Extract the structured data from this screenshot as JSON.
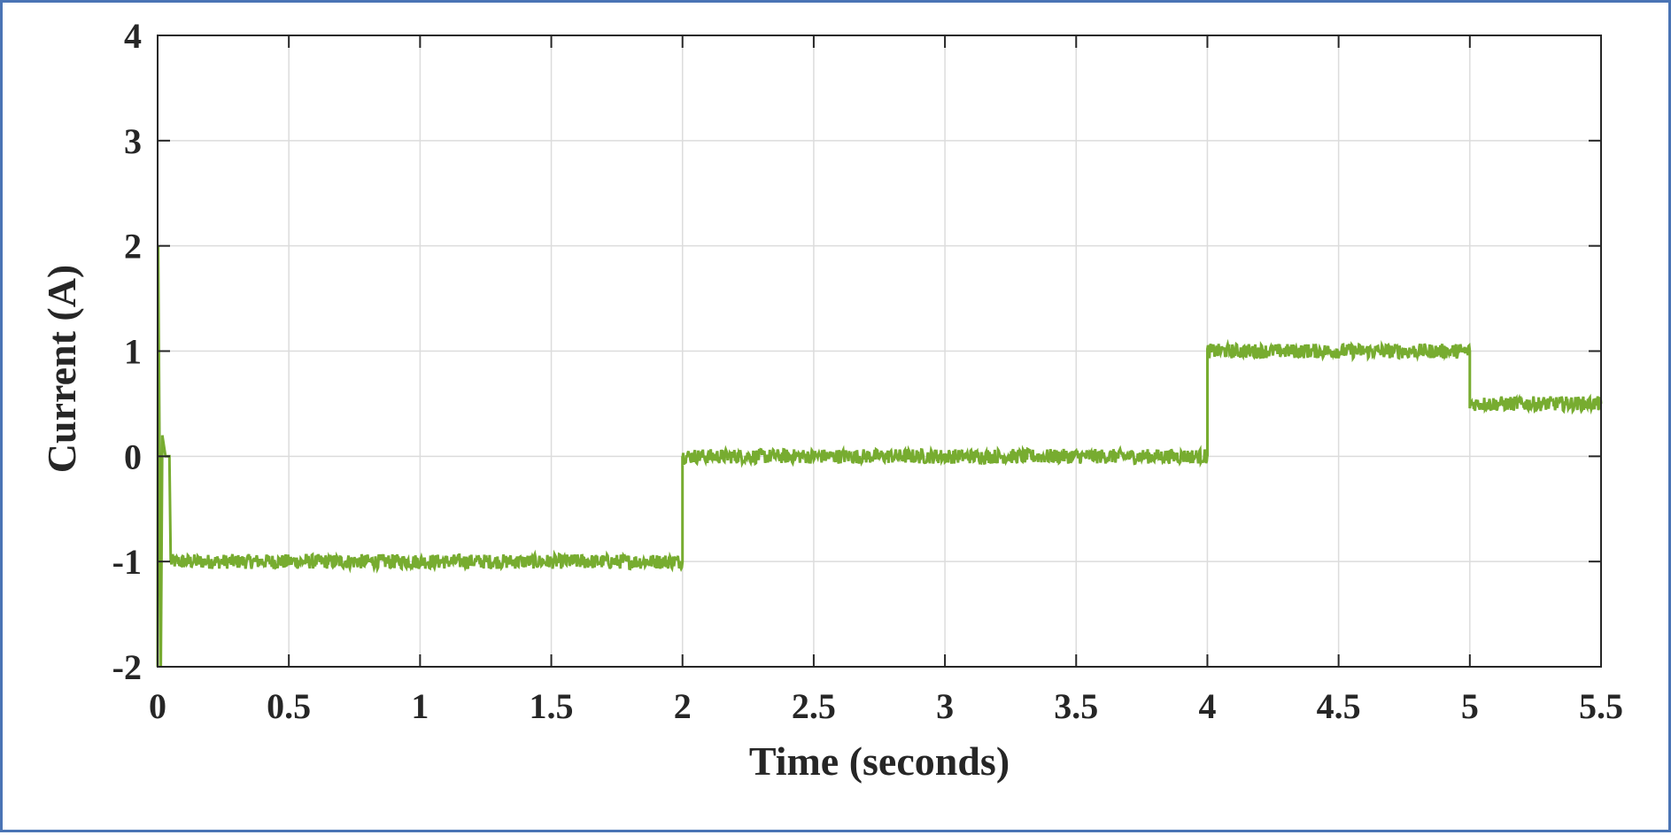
{
  "chart_data": {
    "type": "line",
    "title": "",
    "xlabel": "Time (seconds)",
    "ylabel": "Current (A)",
    "xlim": [
      0,
      5.5
    ],
    "ylim": [
      -2,
      4
    ],
    "xticks": [
      "0",
      "0.5",
      "1",
      "1.5",
      "2",
      "2.5",
      "3",
      "3.5",
      "4",
      "4.5",
      "5",
      "5.5"
    ],
    "yticks": [
      "-2",
      "-1",
      "0",
      "1",
      "2",
      "3",
      "4"
    ],
    "grid": true,
    "legend": "none",
    "series": [
      {
        "color": "#77ac30",
        "noise_amplitude": 0.07,
        "segments": [
          {
            "x_start": 0.05,
            "x_end": 2.0,
            "level": -1.0
          },
          {
            "x_start": 2.0,
            "x_end": 4.0,
            "level": 0.0
          },
          {
            "x_start": 4.0,
            "x_end": 5.0,
            "level": 1.0
          },
          {
            "x_start": 5.0,
            "x_end": 5.5,
            "level": 0.5
          }
        ],
        "startup_transient": [
          {
            "x": 0.0,
            "y": -2.0
          },
          {
            "x": 0.002,
            "y": 2.0
          },
          {
            "x": 0.006,
            "y": 0.5
          },
          {
            "x": 0.012,
            "y": -2.0
          },
          {
            "x": 0.018,
            "y": 0.2
          },
          {
            "x": 0.03,
            "y": 0.0
          },
          {
            "x": 0.045,
            "y": 0.0
          },
          {
            "x": 0.05,
            "y": -1.0
          }
        ]
      }
    ]
  }
}
